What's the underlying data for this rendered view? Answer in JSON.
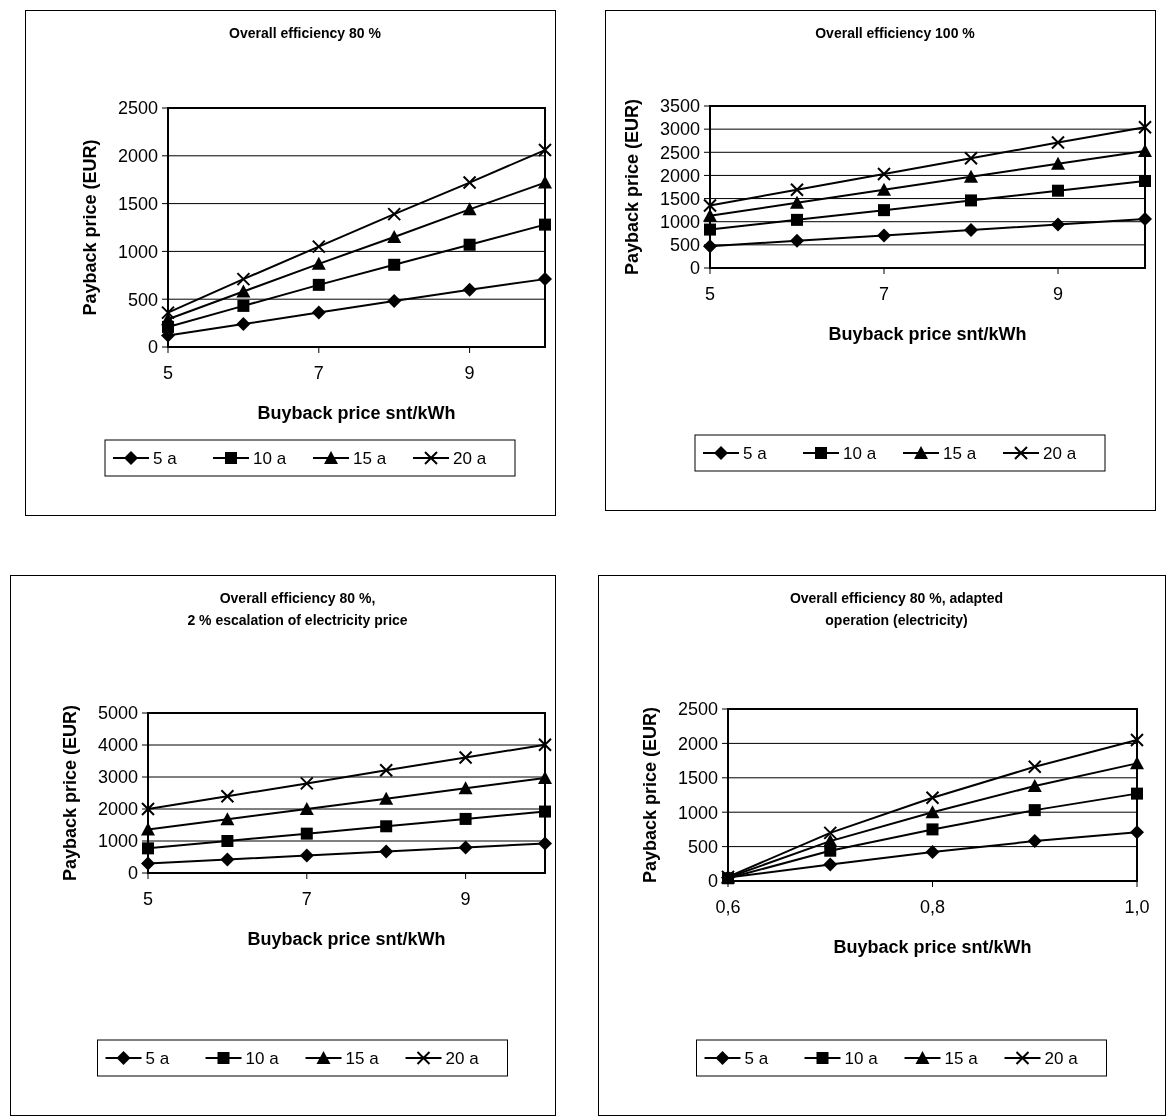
{
  "chart_data": [
    {
      "type": "line",
      "title": "Overall efficiency 80 %",
      "xlabel": "Buyback price snt/kWh",
      "ylabel": "Payback price (EUR)",
      "x": [
        5,
        6,
        7,
        8,
        9,
        10
      ],
      "xlim": [
        5,
        10
      ],
      "xticks": [
        5,
        7,
        9
      ],
      "ylim": [
        0,
        2500
      ],
      "yticks": [
        0,
        500,
        1000,
        1500,
        2000,
        2500
      ],
      "grid": "y",
      "legend": "bottom",
      "line_style": "solid",
      "series": [
        {
          "name": "5 a",
          "color": "#000000",
          "marker": "diamond",
          "values": [
            120,
            240,
            360,
            480,
            600,
            710
          ]
        },
        {
          "name": "10 a",
          "color": "#000000",
          "marker": "square",
          "values": [
            210,
            430,
            650,
            860,
            1070,
            1280
          ]
        },
        {
          "name": "15 a",
          "color": "#000000",
          "marker": "triangle",
          "values": [
            290,
            580,
            870,
            1150,
            1440,
            1720
          ]
        },
        {
          "name": "20 a",
          "color": "#000000",
          "marker": "cross",
          "values": [
            360,
            710,
            1050,
            1390,
            1720,
            2060
          ]
        }
      ]
    },
    {
      "type": "line",
      "title": "Overall efficiency 100 %",
      "xlabel": "Buyback price snt/kWh",
      "ylabel": "Payback price (EUR)",
      "x": [
        5,
        6,
        7,
        8,
        9,
        10
      ],
      "xlim": [
        5,
        10
      ],
      "xticks": [
        5,
        7,
        9
      ],
      "ylim": [
        0,
        3500
      ],
      "yticks": [
        0,
        500,
        1000,
        1500,
        2000,
        2500,
        3000,
        3500
      ],
      "grid": "y",
      "legend": "bottom",
      "line_style": "solid",
      "series": [
        {
          "name": "5 a",
          "color": "#000000",
          "marker": "diamond",
          "values": [
            470,
            590,
            700,
            820,
            940,
            1060
          ]
        },
        {
          "name": "10 a",
          "color": "#000000",
          "marker": "square",
          "values": [
            830,
            1040,
            1250,
            1460,
            1670,
            1880
          ]
        },
        {
          "name": "15 a",
          "color": "#000000",
          "marker": "triangle",
          "values": [
            1130,
            1410,
            1690,
            1970,
            2250,
            2530
          ]
        },
        {
          "name": "20 a",
          "color": "#000000",
          "marker": "cross",
          "values": [
            1350,
            1690,
            2030,
            2370,
            2710,
            3040
          ]
        }
      ]
    },
    {
      "type": "line",
      "title": "Overall efficiency 80 %,\n2 % escalation of electricity price",
      "xlabel": "Buyback price snt/kWh",
      "ylabel": "Payback price (EUR)",
      "x": [
        5,
        6,
        7,
        8,
        9,
        10
      ],
      "xlim": [
        5,
        10
      ],
      "xticks": [
        5,
        7,
        9
      ],
      "ylim": [
        0,
        5000
      ],
      "yticks": [
        0,
        1000,
        2000,
        3000,
        4000,
        5000
      ],
      "grid": "y",
      "legend": "bottom",
      "line_style": "solid",
      "series": [
        {
          "name": "5 a",
          "color": "#000000",
          "marker": "diamond",
          "values": [
            300,
            420,
            550,
            670,
            800,
            920
          ]
        },
        {
          "name": "10 a",
          "color": "#000000",
          "marker": "square",
          "values": [
            770,
            1000,
            1230,
            1460,
            1690,
            1920
          ]
        },
        {
          "name": "15 a",
          "color": "#000000",
          "marker": "triangle",
          "values": [
            1360,
            1680,
            2000,
            2320,
            2650,
            2970
          ]
        },
        {
          "name": "20 a",
          "color": "#000000",
          "marker": "cross",
          "values": [
            2000,
            2400,
            2800,
            3210,
            3610,
            4010
          ]
        }
      ]
    },
    {
      "type": "line",
      "title": "Overall efficiency 80 %, adapted\noperation (electricity)",
      "xlabel": "Buyback price snt/kWh",
      "ylabel": "Payback price (EUR)",
      "x": [
        0.6,
        0.7,
        0.8,
        0.9,
        1.0
      ],
      "xlim": [
        0.6,
        1.0
      ],
      "xticks": [
        {
          "value": 0.6,
          "label": "0,6"
        },
        {
          "value": 0.8,
          "label": "0,8"
        },
        {
          "value": 1.0,
          "label": "1,0"
        }
      ],
      "ylim": [
        0,
        2500
      ],
      "yticks": [
        0,
        500,
        1000,
        1500,
        2000,
        2500
      ],
      "grid": "y",
      "legend": "bottom",
      "line_style": "solid",
      "series": [
        {
          "name": "5 a",
          "color": "#000000",
          "marker": "diamond",
          "values": [
            50,
            240,
            420,
            580,
            710
          ]
        },
        {
          "name": "10 a",
          "color": "#000000",
          "marker": "square",
          "values": [
            40,
            440,
            750,
            1030,
            1270
          ]
        },
        {
          "name": "15 a",
          "color": "#000000",
          "marker": "triangle",
          "values": [
            50,
            580,
            1000,
            1380,
            1710
          ]
        },
        {
          "name": "20 a",
          "color": "#000000",
          "marker": "cross",
          "values": [
            60,
            700,
            1210,
            1660,
            2050
          ]
        }
      ]
    }
  ]
}
